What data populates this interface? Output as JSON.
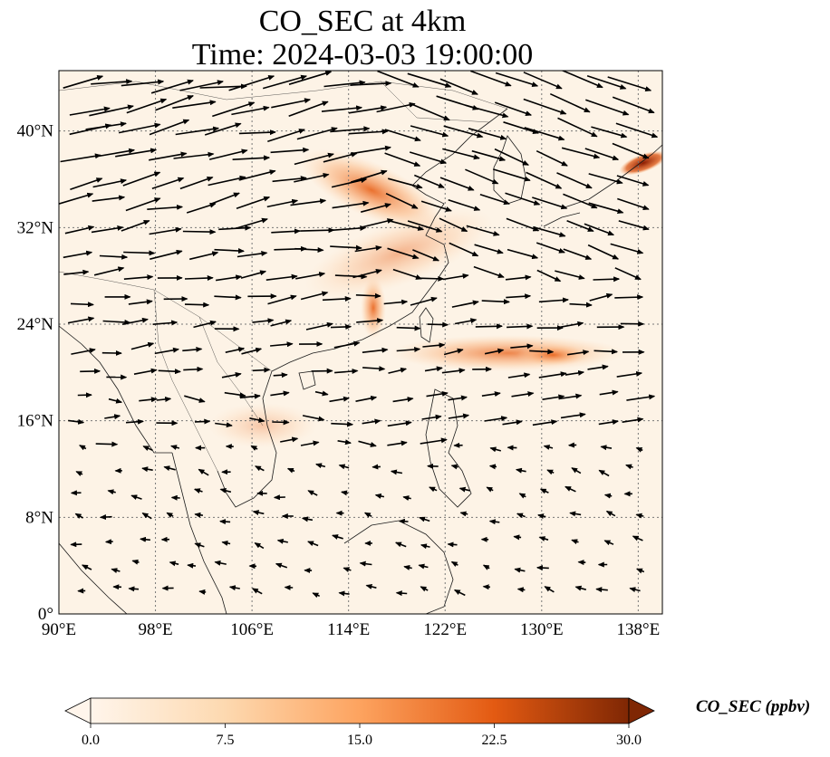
{
  "title": {
    "line1": "CO_SEC at 4km",
    "line2": "Time: 2024-03-03 19:00:00"
  },
  "map": {
    "lon_range": [
      90,
      140
    ],
    "lat_range": [
      0,
      45
    ],
    "lon_ticks": [
      "90°E",
      "98°E",
      "106°E",
      "114°E",
      "122°E",
      "130°E",
      "138°E"
    ],
    "lat_ticks": [
      "0°",
      "8°N",
      "16°N",
      "24°N",
      "32°N",
      "40°N"
    ],
    "gridlines": true
  },
  "colorbar": {
    "label": "CO_SEC (ppbv)",
    "ticks": [
      "0.0",
      "7.5",
      "15.0",
      "22.5",
      "30.0"
    ],
    "range": [
      0,
      30
    ],
    "extend": "both",
    "cmap": [
      "#fff5eb",
      "#fdd0a2",
      "#fd8d3c",
      "#d94801",
      "#7f2704"
    ]
  },
  "plumes": [
    {
      "name": "plume-north-china",
      "lon": 117,
      "lat": 34,
      "value": 12
    },
    {
      "name": "plume-south-china-coast",
      "lon": 116.5,
      "lat": 26,
      "value": 16
    },
    {
      "name": "plume-west-pacific",
      "lon": 130,
      "lat": 21.5,
      "value": 14
    },
    {
      "name": "plume-japan",
      "lon": 138.5,
      "lat": 37.5,
      "value": 28
    }
  ]
}
